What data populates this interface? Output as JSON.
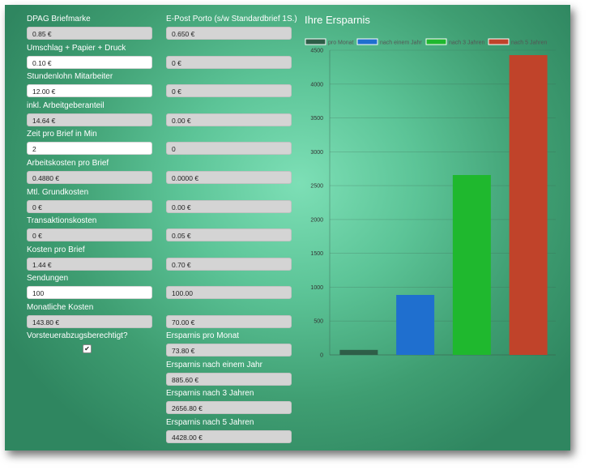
{
  "left_column": [
    {
      "label": "DPAG Briefmarke",
      "value": "0.85 €",
      "editable": false
    },
    {
      "label": "Umschlag + Papier + Druck",
      "value": "0.10 €",
      "editable": true
    },
    {
      "label": "Stundenlohn Mitarbeiter",
      "value": "12.00 €",
      "editable": true
    },
    {
      "label": "inkl. Arbeitgeberanteil",
      "value": "14.64 €",
      "editable": false
    },
    {
      "label": "Zeit pro Brief in Min",
      "value": "2",
      "editable": true
    },
    {
      "label": "Arbeitskosten pro Brief",
      "value": "0.4880 €",
      "editable": false
    },
    {
      "label": "Mtl. Grundkosten",
      "value": "0 €",
      "editable": false
    },
    {
      "label": "Transaktionskosten",
      "value": "0 €",
      "editable": false
    },
    {
      "label": "Kosten pro Brief",
      "value": "1.44 €",
      "editable": false
    },
    {
      "label": "Sendungen",
      "value": "100",
      "editable": true
    },
    {
      "label": "Monatliche Kosten",
      "value": "143.80 €",
      "editable": false
    }
  ],
  "vorsteuer": {
    "label": "Vorsteuerabzugsberechtigt?",
    "checked": "✔"
  },
  "right_column": {
    "header": "E-Post Porto (s/w Standardbrief 1S.)",
    "values": [
      "0.650 €",
      "0 €",
      "0 €",
      "0.00 €",
      "0",
      "0.0000 €",
      "0.00 €",
      "0.05 €",
      "0.70 €",
      "100.00",
      "70.00 €"
    ]
  },
  "savings": [
    {
      "label": "Ersparnis pro Monat",
      "value": "73.80 €"
    },
    {
      "label": "Ersparnis nach einem Jahr",
      "value": "885.60 €"
    },
    {
      "label": "Ersparnis nach 3 Jahren",
      "value": "2656.80 €"
    },
    {
      "label": "Ersparnis nach 5 Jahren",
      "value": "4428.00 €"
    }
  ],
  "chart_title": "Ihre Ersparnis",
  "chart_data": {
    "type": "bar",
    "title": "Ihre Ersparnis",
    "ylim": [
      0,
      4500
    ],
    "yticks": [
      0,
      500,
      1000,
      1500,
      2000,
      2500,
      3000,
      3500,
      4000,
      4500
    ],
    "grid": true,
    "legend_position": "top",
    "series": [
      {
        "name": "pro Monat",
        "value": 73.8,
        "color": "#2e5e48"
      },
      {
        "name": "nach einem Jahr",
        "value": 885.6,
        "color": "#1f6fcf"
      },
      {
        "name": "nach 3 Jahren",
        "value": 2656.8,
        "color": "#1fb82e"
      },
      {
        "name": "nach 5 Jahren",
        "value": 4428,
        "color": "#c0432a"
      }
    ]
  }
}
